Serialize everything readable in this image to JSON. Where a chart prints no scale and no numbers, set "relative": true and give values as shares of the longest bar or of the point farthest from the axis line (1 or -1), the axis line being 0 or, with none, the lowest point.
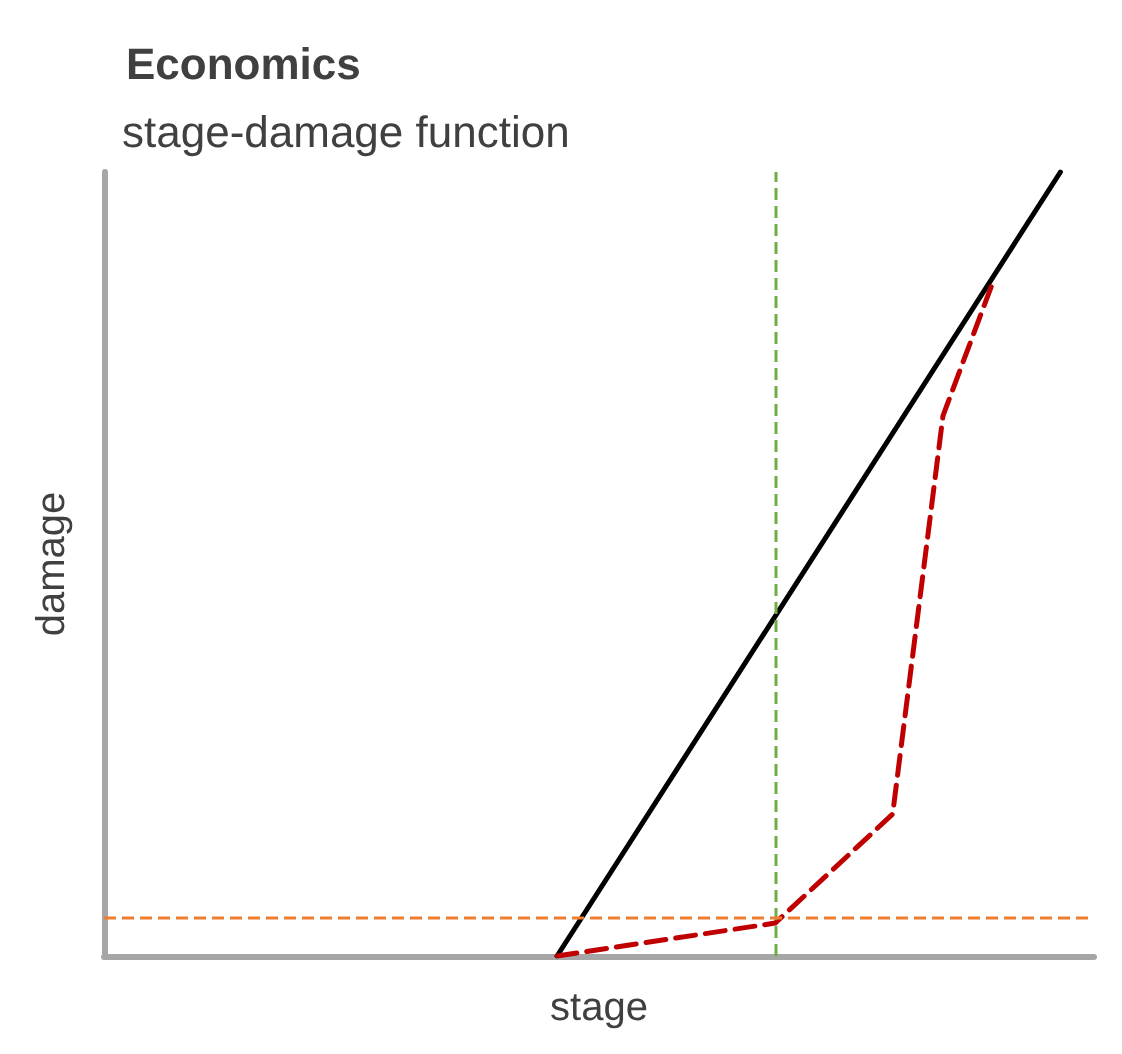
{
  "chart_data": {
    "type": "line",
    "title": "Economics",
    "subtitle": "stage-damage function",
    "xlabel": "stage",
    "ylabel": "damage",
    "relative": true,
    "marker": "none",
    "grid": false,
    "categories": [
      null,
      null,
      null,
      null,
      null,
      null,
      null,
      null,
      null,
      null,
      null,
      null,
      null,
      null,
      null,
      null,
      null,
      null,
      null,
      null,
      null,
      null,
      null,
      null,
      null,
      null,
      null,
      null,
      null,
      null,
      null,
      null,
      null,
      null,
      null,
      null,
      null,
      null,
      null,
      null,
      null,
      null,
      null,
      null,
      null,
      null,
      null,
      null,
      null,
      null,
      null,
      null,
      null,
      null,
      null,
      null,
      null,
      null,
      null,
      null
    ],
    "series": [
      {
        "color": "#000000",
        "line_style": "solid",
        "values": [
          null,
          null,
          null,
          null,
          null,
          null,
          null,
          null,
          null,
          null,
          null,
          null,
          null,
          null,
          null,
          null,
          null,
          null,
          null,
          null,
          null,
          null,
          null,
          null,
          null,
          null,
          null,
          0,
          null,
          null,
          null,
          null,
          null,
          null,
          null,
          null,
          null,
          null,
          null,
          null,
          null,
          null,
          null,
          null,
          null,
          null,
          null,
          null,
          null,
          null,
          null,
          null,
          null,
          null,
          null,
          null,
          null,
          1,
          null,
          null
        ]
      },
      {
        "color": "#c00000",
        "line_style": "dashed",
        "values": [
          null,
          null,
          null,
          null,
          null,
          null,
          null,
          null,
          null,
          null,
          null,
          null,
          null,
          null,
          null,
          null,
          null,
          null,
          null,
          null,
          null,
          null,
          null,
          null,
          null,
          null,
          null,
          0,
          null,
          null,
          null,
          null,
          null,
          null,
          null,
          null,
          null,
          null,
          null,
          null,
          0.042,
          null,
          null,
          null,
          null,
          null,
          null,
          0.181,
          null,
          null,
          0.689,
          null,
          null,
          0.861,
          null,
          null,
          null,
          null,
          null,
          null
        ]
      }
    ],
    "ref_lines": [
      {
        "axis": "y",
        "value": 0.049,
        "color": "#ed7d31",
        "line_style": "dashed"
      }
    ]
  }
}
